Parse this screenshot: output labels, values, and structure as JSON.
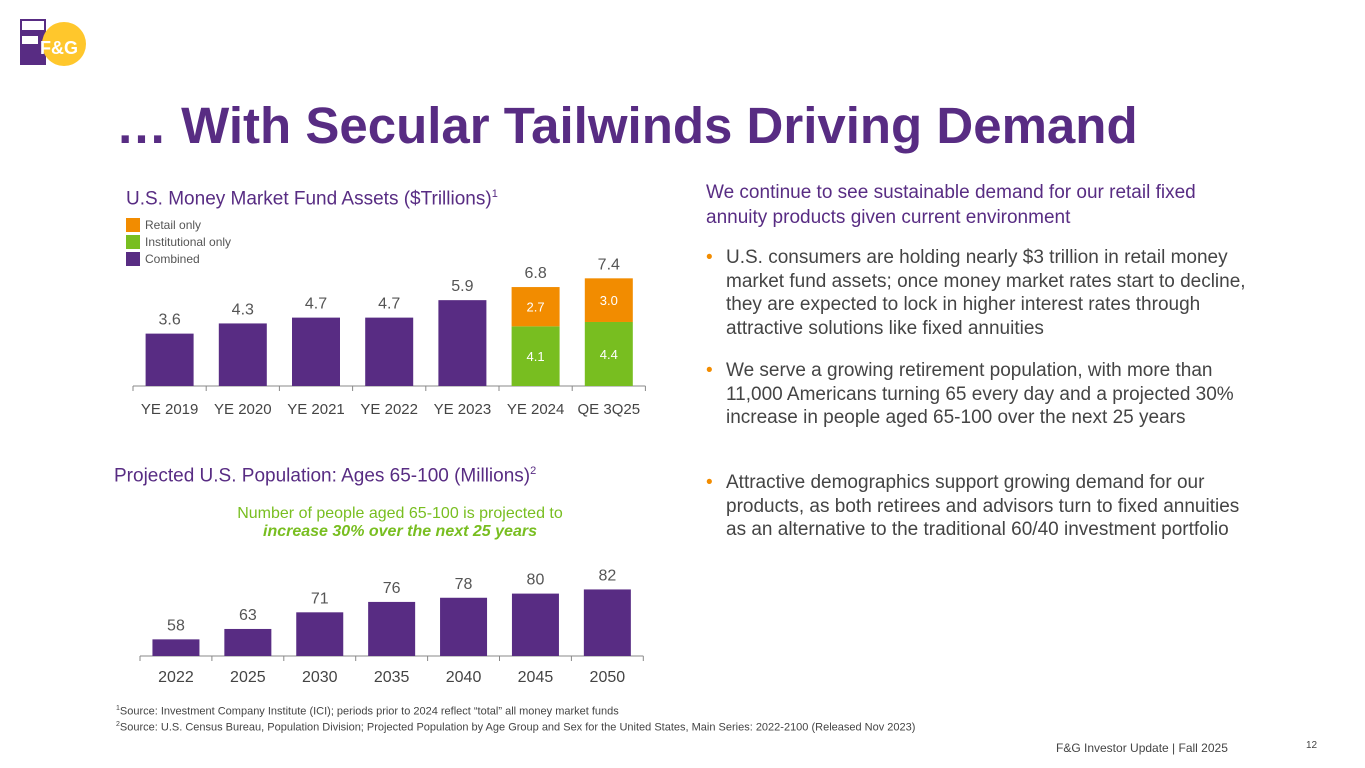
{
  "logo": {
    "text": "F&G"
  },
  "title": "… With Secular Tailwinds Driving Demand",
  "money_market": {
    "title": "U.S. Money Market Fund Assets ($Trillions)",
    "title_sup": "1",
    "legend": [
      {
        "label": "Retail only",
        "color": "#f28c00"
      },
      {
        "label": "Institutional only",
        "color": "#78be20"
      },
      {
        "label": "Combined",
        "color": "#582c83"
      }
    ]
  },
  "population": {
    "title": "Projected U.S. Population: Ages 65-100 (Millions)",
    "title_sup": "2",
    "annotation_line1": "Number of people aged 65-100 is projected to",
    "annotation_line2": "increase 30% over the next 25 years"
  },
  "chart_data": [
    {
      "type": "bar",
      "stacked": true,
      "title": "U.S. Money Market Fund Assets ($Trillions)",
      "categories": [
        "YE 2019",
        "YE 2020",
        "YE 2021",
        "YE 2022",
        "YE 2023",
        "YE 2024",
        "QE 3Q25"
      ],
      "totals": [
        3.6,
        4.3,
        4.7,
        4.7,
        5.9,
        6.8,
        7.4
      ],
      "series": [
        {
          "name": "Combined",
          "values": [
            3.6,
            4.3,
            4.7,
            4.7,
            5.9,
            0,
            0
          ],
          "color": "#582c83"
        },
        {
          "name": "Institutional only",
          "values": [
            0,
            0,
            0,
            0,
            0,
            4.1,
            4.4
          ],
          "color": "#78be20"
        },
        {
          "name": "Retail only",
          "values": [
            0,
            0,
            0,
            0,
            0,
            2.7,
            3.0
          ],
          "color": "#f28c00"
        }
      ],
      "value_labels": {
        "totals": [
          "3.6",
          "4.3",
          "4.7",
          "4.7",
          "5.9",
          "6.8",
          "7.4"
        ],
        "institutional": [
          "",
          "",
          "",
          "",
          "",
          "4.1",
          "4.4"
        ],
        "retail": [
          "",
          "",
          "",
          "",
          "",
          "2.7",
          "3.0"
        ]
      },
      "ylim": [
        0,
        8.2
      ],
      "grid": false,
      "legend": "top-left"
    },
    {
      "type": "bar",
      "title": "Projected U.S. Population: Ages 65-100 (Millions)",
      "categories": [
        "2022",
        "2025",
        "2030",
        "2035",
        "2040",
        "2045",
        "2050"
      ],
      "values": [
        58,
        63,
        71,
        76,
        78,
        80,
        82
      ],
      "value_labels": [
        "58",
        "63",
        "71",
        "76",
        "78",
        "80",
        "82"
      ],
      "color": "#582c83",
      "ylim": [
        50,
        83
      ],
      "grid": false
    }
  ],
  "right": {
    "title": "We continue to see sustainable demand for our retail fixed annuity products given current environment",
    "bullets": [
      "U.S. consumers are holding nearly $3 trillion in retail money market fund assets; once money market rates start to decline, they are expected to lock in higher interest rates through attractive solutions like fixed annuities",
      "We serve a growing retirement population, with more than 11,000 Americans turning 65 every day and a projected 30% increase in people aged 65-100 over the next 25 years",
      "Attractive demographics support growing demand for our products, as both retirees and advisors turn to fixed annuities as an alternative to the traditional 60/40 investment portfolio"
    ],
    "bullet_marker": "•"
  },
  "footnotes": [
    {
      "sup": "1",
      "text": "Source: Investment Company Institute (ICI); periods prior to 2024 reflect “total” all money market funds"
    },
    {
      "sup": "2",
      "text": "Source: U.S. Census Bureau, Population Division; Projected Population by Age Group and Sex for the United States, Main Series: 2022-2100 (Released Nov 2023)"
    }
  ],
  "footer": "F&G Investor Update |  Fall 2025",
  "page_number": "12"
}
